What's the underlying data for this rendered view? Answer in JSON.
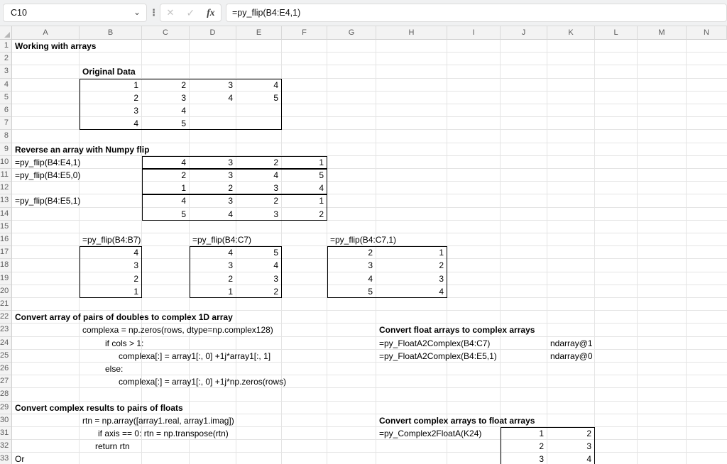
{
  "chrome": {
    "name_box": "C10",
    "formula": "=py_flip(B4:E4,1)",
    "fx_label": "fx",
    "cancel_glyph": "✕",
    "confirm_glyph": "✓",
    "dots_glyph": "⋮",
    "dropdown_glyph": "⌄"
  },
  "grid": {
    "col_labels": [
      "A",
      "B",
      "C",
      "D",
      "E",
      "F",
      "G",
      "H",
      "I",
      "J",
      "K",
      "L",
      "M",
      "N"
    ],
    "row_count": 33
  },
  "colors": {
    "grid_line": "#e4e4e4",
    "header_bg": "#f3f3f3",
    "header_text": "#5c5c5c",
    "range_border": "#000000",
    "chrome_bg": "#f0f1f2"
  },
  "cells": [
    {
      "c": "A",
      "r": 1,
      "t": "Working with arrays",
      "b": 1
    },
    {
      "c": "B",
      "r": 3,
      "t": "Original Data",
      "b": 1
    },
    {
      "c": "B",
      "r": 4,
      "t": "1",
      "n": 1
    },
    {
      "c": "C",
      "r": 4,
      "t": "2",
      "n": 1
    },
    {
      "c": "D",
      "r": 4,
      "t": "3",
      "n": 1
    },
    {
      "c": "E",
      "r": 4,
      "t": "4",
      "n": 1
    },
    {
      "c": "B",
      "r": 5,
      "t": "2",
      "n": 1
    },
    {
      "c": "C",
      "r": 5,
      "t": "3",
      "n": 1
    },
    {
      "c": "D",
      "r": 5,
      "t": "4",
      "n": 1
    },
    {
      "c": "E",
      "r": 5,
      "t": "5",
      "n": 1
    },
    {
      "c": "B",
      "r": 6,
      "t": "3",
      "n": 1
    },
    {
      "c": "C",
      "r": 6,
      "t": "4",
      "n": 1
    },
    {
      "c": "B",
      "r": 7,
      "t": "4",
      "n": 1
    },
    {
      "c": "C",
      "r": 7,
      "t": "5",
      "n": 1
    },
    {
      "c": "A",
      "r": 9,
      "t": "Reverse an array with Numpy flip",
      "b": 1
    },
    {
      "c": "A",
      "r": 10,
      "t": "=py_flip(B4:E4,1)"
    },
    {
      "c": "C",
      "r": 10,
      "t": "4",
      "n": 1
    },
    {
      "c": "D",
      "r": 10,
      "t": "3",
      "n": 1
    },
    {
      "c": "E",
      "r": 10,
      "t": "2",
      "n": 1
    },
    {
      "c": "F",
      "r": 10,
      "t": "1",
      "n": 1
    },
    {
      "c": "A",
      "r": 11,
      "t": "=py_flip(B4:E5,0)"
    },
    {
      "c": "C",
      "r": 11,
      "t": "2",
      "n": 1
    },
    {
      "c": "D",
      "r": 11,
      "t": "3",
      "n": 1
    },
    {
      "c": "E",
      "r": 11,
      "t": "4",
      "n": 1
    },
    {
      "c": "F",
      "r": 11,
      "t": "5",
      "n": 1
    },
    {
      "c": "C",
      "r": 12,
      "t": "1",
      "n": 1
    },
    {
      "c": "D",
      "r": 12,
      "t": "2",
      "n": 1
    },
    {
      "c": "E",
      "r": 12,
      "t": "3",
      "n": 1
    },
    {
      "c": "F",
      "r": 12,
      "t": "4",
      "n": 1
    },
    {
      "c": "A",
      "r": 13,
      "t": "=py_flip(B4:E5,1)"
    },
    {
      "c": "C",
      "r": 13,
      "t": "4",
      "n": 1
    },
    {
      "c": "D",
      "r": 13,
      "t": "3",
      "n": 1
    },
    {
      "c": "E",
      "r": 13,
      "t": "2",
      "n": 1
    },
    {
      "c": "F",
      "r": 13,
      "t": "1",
      "n": 1
    },
    {
      "c": "C",
      "r": 14,
      "t": "5",
      "n": 1
    },
    {
      "c": "D",
      "r": 14,
      "t": "4",
      "n": 1
    },
    {
      "c": "E",
      "r": 14,
      "t": "3",
      "n": 1
    },
    {
      "c": "F",
      "r": 14,
      "t": "2",
      "n": 1
    },
    {
      "c": "B",
      "r": 16,
      "t": "=py_flip(B4:B7)"
    },
    {
      "c": "D",
      "r": 16,
      "t": "=py_flip(B4:C7)"
    },
    {
      "c": "G",
      "r": 16,
      "t": "=py_flip(B4:C7,1)"
    },
    {
      "c": "B",
      "r": 17,
      "t": "4",
      "n": 1
    },
    {
      "c": "D",
      "r": 17,
      "t": "4",
      "n": 1
    },
    {
      "c": "E",
      "r": 17,
      "t": "5",
      "n": 1
    },
    {
      "c": "G",
      "r": 17,
      "t": "2",
      "n": 1
    },
    {
      "c": "H",
      "r": 17,
      "t": "1",
      "n": 1
    },
    {
      "c": "B",
      "r": 18,
      "t": "3",
      "n": 1
    },
    {
      "c": "D",
      "r": 18,
      "t": "3",
      "n": 1
    },
    {
      "c": "E",
      "r": 18,
      "t": "4",
      "n": 1
    },
    {
      "c": "G",
      "r": 18,
      "t": "3",
      "n": 1
    },
    {
      "c": "H",
      "r": 18,
      "t": "2",
      "n": 1
    },
    {
      "c": "B",
      "r": 19,
      "t": "2",
      "n": 1
    },
    {
      "c": "D",
      "r": 19,
      "t": "2",
      "n": 1
    },
    {
      "c": "E",
      "r": 19,
      "t": "3",
      "n": 1
    },
    {
      "c": "G",
      "r": 19,
      "t": "4",
      "n": 1
    },
    {
      "c": "H",
      "r": 19,
      "t": "3",
      "n": 1
    },
    {
      "c": "B",
      "r": 20,
      "t": "1",
      "n": 1
    },
    {
      "c": "D",
      "r": 20,
      "t": "1",
      "n": 1
    },
    {
      "c": "E",
      "r": 20,
      "t": "2",
      "n": 1
    },
    {
      "c": "G",
      "r": 20,
      "t": "5",
      "n": 1
    },
    {
      "c": "H",
      "r": 20,
      "t": "4",
      "n": 1
    },
    {
      "c": "A",
      "r": 22,
      "t": "Convert array of pairs of doubles to complex 1D array",
      "b": 1
    },
    {
      "c": "B",
      "r": 23,
      "t": "complexa = np.zeros(rows, dtype=np.complex128)"
    },
    {
      "c": "H",
      "r": 23,
      "t": "Convert float arrays to complex arrays",
      "b": 1
    },
    {
      "c": "B",
      "r": 24,
      "t": "if cols > 1:",
      "i": 32
    },
    {
      "c": "H",
      "r": 24,
      "t": "=py_FloatA2Complex(B4:C7)"
    },
    {
      "c": "K",
      "r": 24,
      "t": "ndarray@1"
    },
    {
      "c": "B",
      "r": 25,
      "t": "complexa[:] = array1[:, 0] +1j*array1[:, 1]",
      "i": 51
    },
    {
      "c": "H",
      "r": 25,
      "t": "=py_FloatA2Complex(B4:E5,1)"
    },
    {
      "c": "K",
      "r": 25,
      "t": "ndarray@0"
    },
    {
      "c": "B",
      "r": 26,
      "t": "else:",
      "i": 32
    },
    {
      "c": "B",
      "r": 27,
      "t": "complexa[:] = array1[:, 0] +1j*np.zeros(rows)",
      "i": 51
    },
    {
      "c": "A",
      "r": 29,
      "t": "Convert complex results to pairs of floats",
      "b": 1
    },
    {
      "c": "B",
      "r": 30,
      "t": "rtn = np.array([array1.real, array1.imag])"
    },
    {
      "c": "H",
      "r": 30,
      "t": "Convert complex arrays to float arrays",
      "b": 1
    },
    {
      "c": "B",
      "r": 31,
      "t": "if axis == 0: rtn = np.transpose(rtn)",
      "i": 22
    },
    {
      "c": "H",
      "r": 31,
      "t": "=py_Complex2FloatA(K24)"
    },
    {
      "c": "J",
      "r": 31,
      "t": "1",
      "n": 1
    },
    {
      "c": "K",
      "r": 31,
      "t": "2",
      "n": 1
    },
    {
      "c": "B",
      "r": 32,
      "t": "return rtn",
      "i": 18
    },
    {
      "c": "J",
      "r": 32,
      "t": "2",
      "n": 1
    },
    {
      "c": "K",
      "r": 32,
      "t": "3",
      "n": 1
    },
    {
      "c": "A",
      "r": 33,
      "t": "Or"
    },
    {
      "c": "J",
      "r": 33,
      "t": "3",
      "n": 1
    },
    {
      "c": "K",
      "r": 33,
      "t": "4",
      "n": 1
    }
  ],
  "range_boxes": [
    "B4:E7",
    "C10:F10",
    "C11:F12",
    "C13:F14",
    "B17:B20",
    "D17:E20",
    "G17:H20",
    "J31:K33"
  ]
}
